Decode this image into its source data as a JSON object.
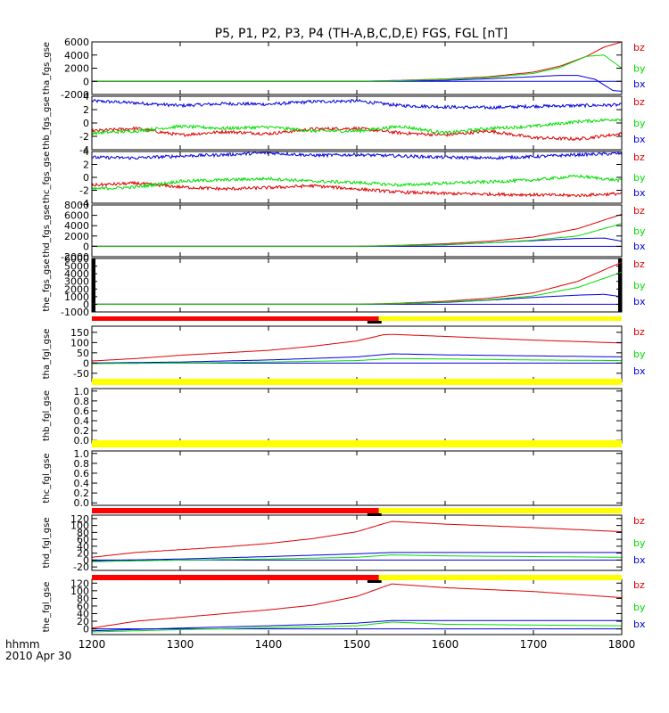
{
  "title": "P5, P1, P2, P3, P4 (TH-A,B,C,D,E) FGS, FGL [nT]",
  "colors": {
    "bz": "#dd0000",
    "by": "#00dd00",
    "bx": "#0000dd",
    "bar_red": "#ff0000",
    "bar_yellow": "#ffff00",
    "bar_black": "#000000"
  },
  "x_axis": {
    "label_line1": "hhmm",
    "label_line2": "2010 Apr 30",
    "min": 1200,
    "max": 1800,
    "ticks": [
      "1200",
      "1300",
      "1400",
      "1500",
      "1600",
      "1700",
      "1800"
    ]
  },
  "legend": [
    "bz",
    "by",
    "bx"
  ],
  "chart_data": [
    {
      "type": "line",
      "ylabel": "tha_fgs_gse",
      "ylim": [
        -2000,
        6000
      ],
      "yticks": [
        "6000",
        "4000",
        "2000",
        "0",
        "-2000"
      ],
      "ytick_values": [
        6000,
        4000,
        2000,
        0,
        -2000
      ],
      "style": "smooth",
      "series": [
        {
          "name": "bz",
          "x": [
            1200,
            1300,
            1400,
            1500,
            1550,
            1600,
            1650,
            1700,
            1730,
            1760,
            1780,
            1800
          ],
          "values": [
            0,
            0,
            0,
            0,
            150,
            350,
            700,
            1400,
            2300,
            3800,
            5200,
            6000
          ]
        },
        {
          "name": "by",
          "x": [
            1200,
            1300,
            1400,
            1500,
            1550,
            1600,
            1650,
            1700,
            1730,
            1760,
            1780,
            1800
          ],
          "values": [
            0,
            0,
            0,
            0,
            100,
            300,
            600,
            1200,
            2100,
            3800,
            4000,
            2000
          ]
        },
        {
          "name": "bx",
          "x": [
            1200,
            1300,
            1400,
            1500,
            1550,
            1600,
            1650,
            1700,
            1730,
            1750,
            1770,
            1790,
            1800
          ],
          "values": [
            0,
            0,
            0,
            0,
            50,
            150,
            400,
            700,
            900,
            900,
            300,
            -1400,
            -1500
          ]
        }
      ]
    },
    {
      "type": "line",
      "ylabel": "thb_fgs_gse",
      "ylim": [
        -4,
        4
      ],
      "yticks": [
        "4",
        "2",
        "0",
        "-2",
        "-4"
      ],
      "ytick_values": [
        4,
        2,
        0,
        -2,
        -4
      ],
      "style": "noisy",
      "series": [
        {
          "name": "bz",
          "x": [
            1200,
            1250,
            1300,
            1350,
            1400,
            1450,
            1500,
            1550,
            1600,
            1650,
            1700,
            1750,
            1800
          ],
          "values": [
            -1.2,
            -0.8,
            -1.8,
            -1.3,
            -1.6,
            -0.9,
            -0.8,
            -1.5,
            -1.8,
            -1.2,
            -2.2,
            -2.4,
            -1.6
          ]
        },
        {
          "name": "by",
          "x": [
            1200,
            1250,
            1300,
            1350,
            1400,
            1450,
            1500,
            1550,
            1600,
            1650,
            1700,
            1750,
            1800
          ],
          "values": [
            -1.5,
            -1.2,
            -0.5,
            -0.8,
            -0.6,
            -1.2,
            -1.2,
            -0.5,
            -1.5,
            -0.8,
            -0.5,
            0.2,
            0.6
          ]
        },
        {
          "name": "bx",
          "x": [
            1200,
            1250,
            1300,
            1350,
            1400,
            1450,
            1500,
            1550,
            1600,
            1650,
            1700,
            1750,
            1800
          ],
          "values": [
            3.3,
            3.0,
            2.6,
            2.9,
            2.8,
            3.2,
            3.3,
            2.6,
            2.4,
            2.3,
            2.5,
            2.6,
            2.7
          ]
        }
      ]
    },
    {
      "type": "line",
      "ylabel": "thc_fgs_gse",
      "ylim": [
        -4,
        4
      ],
      "yticks": [
        "4",
        "2",
        "0",
        "-2",
        "-4"
      ],
      "ytick_values": [
        4,
        2,
        0,
        -2,
        -4
      ],
      "style": "noisy",
      "series": [
        {
          "name": "bz",
          "x": [
            1200,
            1250,
            1300,
            1350,
            1400,
            1450,
            1500,
            1550,
            1600,
            1650,
            1700,
            1750,
            1800
          ],
          "values": [
            -1.2,
            -0.9,
            -1.5,
            -1.8,
            -1.6,
            -1.3,
            -1.8,
            -2.3,
            -2.5,
            -2.6,
            -2.7,
            -2.8,
            -2.5
          ]
        },
        {
          "name": "by",
          "x": [
            1200,
            1250,
            1300,
            1350,
            1400,
            1450,
            1500,
            1550,
            1600,
            1650,
            1700,
            1750,
            1800
          ],
          "values": [
            -1.8,
            -1.5,
            -0.6,
            -0.4,
            -0.2,
            -0.6,
            -0.8,
            -1.2,
            -0.9,
            -0.7,
            -0.4,
            0.2,
            -0.5
          ]
        },
        {
          "name": "bx",
          "x": [
            1200,
            1250,
            1300,
            1350,
            1400,
            1450,
            1500,
            1550,
            1600,
            1650,
            1700,
            1750,
            1800
          ],
          "values": [
            3.1,
            3.0,
            3.3,
            3.5,
            3.8,
            3.4,
            3.5,
            3.3,
            3.1,
            3.0,
            3.2,
            3.5,
            3.7
          ]
        }
      ]
    },
    {
      "type": "line",
      "ylabel": "thd_fgs_gse",
      "ylim": [
        -2000,
        8000
      ],
      "yticks": [
        "8000",
        "6000",
        "4000",
        "2000",
        "0",
        "-2000"
      ],
      "ytick_values": [
        8000,
        6000,
        4000,
        2000,
        0,
        -2000
      ],
      "style": "smooth",
      "series": [
        {
          "name": "bz",
          "x": [
            1200,
            1300,
            1400,
            1500,
            1550,
            1600,
            1650,
            1700,
            1750,
            1800
          ],
          "values": [
            0,
            0,
            0,
            0,
            200,
            500,
            1000,
            1800,
            3400,
            6200
          ]
        },
        {
          "name": "by",
          "x": [
            1200,
            1300,
            1400,
            1500,
            1550,
            1600,
            1650,
            1700,
            1750,
            1800
          ],
          "values": [
            0,
            0,
            0,
            0,
            150,
            350,
            700,
            1200,
            2000,
            4400
          ]
        },
        {
          "name": "bx",
          "x": [
            1200,
            1300,
            1400,
            1500,
            1550,
            1600,
            1650,
            1700,
            1750,
            1780,
            1800
          ],
          "values": [
            0,
            0,
            0,
            0,
            100,
            300,
            700,
            1100,
            1500,
            1600,
            1000
          ]
        }
      ]
    },
    {
      "type": "line",
      "ylabel": "the_fgs_gse",
      "ylim": [
        -1000,
        6000
      ],
      "yticks": [
        "6000",
        "5000",
        "4000",
        "3000",
        "2000",
        "1000",
        "0",
        "-1000"
      ],
      "ytick_values": [
        6000,
        5000,
        4000,
        3000,
        2000,
        1000,
        0,
        -1000
      ],
      "style": "smooth",
      "edge_bars": true,
      "series": [
        {
          "name": "bz",
          "x": [
            1200,
            1300,
            1400,
            1500,
            1550,
            1600,
            1650,
            1700,
            1750,
            1800
          ],
          "values": [
            0,
            0,
            0,
            0,
            150,
            400,
            800,
            1500,
            3000,
            5500
          ]
        },
        {
          "name": "by",
          "x": [
            1200,
            1300,
            1400,
            1500,
            1550,
            1600,
            1650,
            1700,
            1750,
            1800
          ],
          "values": [
            0,
            0,
            0,
            0,
            100,
            300,
            600,
            1100,
            2200,
            4200
          ]
        },
        {
          "name": "bx",
          "x": [
            1200,
            1300,
            1400,
            1500,
            1550,
            1600,
            1650,
            1700,
            1750,
            1780,
            1800
          ],
          "values": [
            0,
            0,
            0,
            0,
            80,
            250,
            550,
            900,
            1200,
            1300,
            1000
          ]
        }
      ]
    },
    {
      "type": "line",
      "ylabel": "tha_fgl_gse",
      "ylim": [
        -90,
        180
      ],
      "yticks": [
        "150",
        "100",
        "50",
        "0",
        "-50"
      ],
      "ytick_values": [
        150,
        100,
        50,
        0,
        -50
      ],
      "style": "smooth",
      "series": [
        {
          "name": "bz",
          "x": [
            1200,
            1250,
            1300,
            1350,
            1400,
            1450,
            1500,
            1530,
            1540,
            1600,
            1700,
            1800
          ],
          "values": [
            10,
            22,
            38,
            50,
            62,
            82,
            108,
            138,
            140,
            130,
            112,
            98
          ]
        },
        {
          "name": "by",
          "x": [
            1200,
            1300,
            1400,
            1500,
            1540,
            1600,
            1700,
            1800
          ],
          "values": [
            -3,
            0,
            5,
            12,
            22,
            20,
            15,
            12
          ]
        },
        {
          "name": "bx",
          "x": [
            1200,
            1300,
            1400,
            1500,
            1540,
            1600,
            1700,
            1800
          ],
          "values": [
            0,
            5,
            15,
            30,
            45,
            40,
            35,
            30
          ]
        }
      ]
    },
    {
      "type": "line",
      "ylabel": "thb_fgl_gse",
      "ylim": [
        -0.05,
        1.05
      ],
      "yticks": [
        "1.0",
        "0.8",
        "0.6",
        "0.4",
        "0.2",
        "0.0"
      ],
      "ytick_values": [
        1.0,
        0.8,
        0.6,
        0.4,
        0.2,
        0.0
      ],
      "series": []
    },
    {
      "type": "line",
      "ylabel": "thc_fgl_gse",
      "ylim": [
        -0.05,
        1.05
      ],
      "yticks": [
        "1.0",
        "0.8",
        "0.6",
        "0.4",
        "0.2",
        "0.0"
      ],
      "ytick_values": [
        1.0,
        0.8,
        0.6,
        0.4,
        0.2,
        0.0
      ],
      "series": []
    },
    {
      "type": "line",
      "ylabel": "thd_fgl_gse",
      "ylim": [
        -30,
        130
      ],
      "yticks": [
        "120",
        "100",
        "80",
        "60",
        "40",
        "20",
        "0",
        "-20"
      ],
      "ytick_values": [
        120,
        100,
        80,
        60,
        40,
        20,
        0,
        -20
      ],
      "style": "smooth",
      "series": [
        {
          "name": "bz",
          "x": [
            1200,
            1250,
            1300,
            1350,
            1400,
            1450,
            1500,
            1530,
            1540,
            1600,
            1700,
            1800
          ],
          "values": [
            8,
            22,
            30,
            38,
            48,
            62,
            82,
            105,
            112,
            104,
            94,
            82
          ]
        },
        {
          "name": "by",
          "x": [
            1200,
            1300,
            1400,
            1500,
            1540,
            1600,
            1700,
            1800
          ],
          "values": [
            -5,
            0,
            3,
            8,
            15,
            12,
            10,
            8
          ]
        },
        {
          "name": "bx",
          "x": [
            1200,
            1300,
            1400,
            1500,
            1540,
            1600,
            1700,
            1800
          ],
          "values": [
            -2,
            3,
            10,
            18,
            22,
            22,
            22,
            22
          ]
        }
      ]
    },
    {
      "type": "line",
      "ylabel": "the_fgl_gse",
      "ylim": [
        -15,
        130
      ],
      "yticks": [
        "120",
        "100",
        "80",
        "60",
        "40",
        "20",
        "0"
      ],
      "ytick_values": [
        120,
        100,
        80,
        60,
        40,
        20,
        0
      ],
      "style": "smooth",
      "series": [
        {
          "name": "bz",
          "x": [
            1200,
            1250,
            1300,
            1350,
            1400,
            1450,
            1500,
            1530,
            1540,
            1600,
            1700,
            1800
          ],
          "values": [
            2,
            20,
            30,
            40,
            50,
            62,
            85,
            110,
            118,
            108,
            98,
            82
          ]
        },
        {
          "name": "by",
          "x": [
            1200,
            1300,
            1400,
            1500,
            1540,
            1600,
            1700,
            1800
          ],
          "values": [
            -8,
            -2,
            3,
            8,
            18,
            12,
            10,
            8
          ]
        },
        {
          "name": "bx",
          "x": [
            1200,
            1300,
            1400,
            1500,
            1540,
            1600,
            1700,
            1800
          ],
          "values": [
            -5,
            2,
            8,
            15,
            22,
            22,
            22,
            22
          ]
        }
      ]
    }
  ],
  "mode_bars": [
    {
      "after_panel": 4,
      "segments": [
        {
          "from": 1200,
          "to": 1525,
          "color": "red"
        },
        {
          "from": 1525,
          "to": 1800,
          "color": "yellow"
        }
      ],
      "marker": [
        1512,
        1528
      ]
    },
    {
      "after_panel": 5,
      "segments": [
        {
          "from": 1200,
          "to": 1800,
          "color": "yellow"
        }
      ]
    },
    {
      "after_panel": 6,
      "segments": [
        {
          "from": 1200,
          "to": 1800,
          "color": "yellow"
        }
      ]
    },
    {
      "after_panel": 7,
      "segments": [
        {
          "from": 1200,
          "to": 1525,
          "color": "red"
        },
        {
          "from": 1525,
          "to": 1800,
          "color": "yellow"
        }
      ],
      "marker": [
        1512,
        1528
      ]
    },
    {
      "after_panel": 8,
      "segments": [
        {
          "from": 1200,
          "to": 1525,
          "color": "red"
        },
        {
          "from": 1525,
          "to": 1800,
          "color": "yellow"
        }
      ],
      "marker": [
        1512,
        1528
      ]
    }
  ]
}
